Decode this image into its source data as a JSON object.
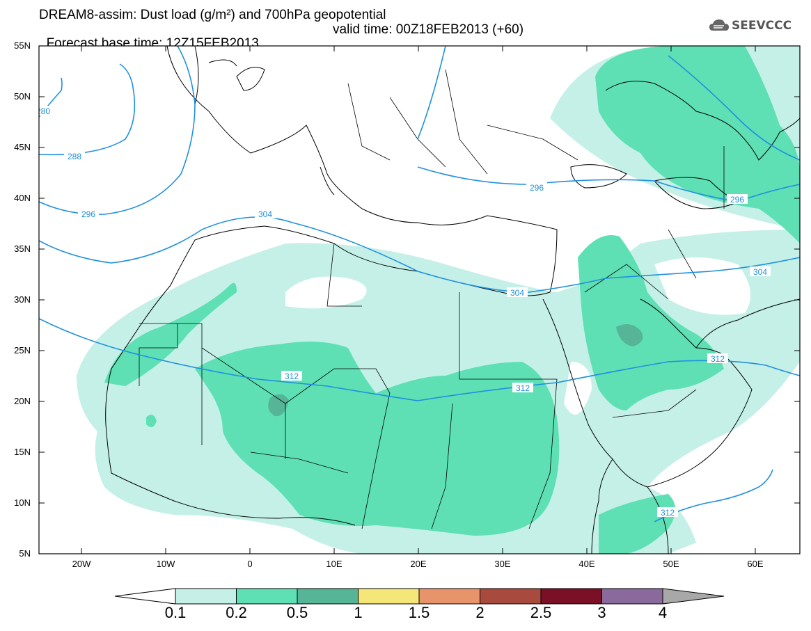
{
  "header": {
    "line1": "DREAM8-assim: Dust load (g/m²) and 700hPa geopotential",
    "line2_base": "Forecast base time: 12Z15FEB2013",
    "line2_valid": "valid time: 00Z18FEB2013 (+60)"
  },
  "logo": {
    "text": "SEEVCCC",
    "icon": "cloud-icon"
  },
  "map": {
    "lat_labels": [
      "55N",
      "50N",
      "45N",
      "40N",
      "35N",
      "30N",
      "25N",
      "20N",
      "15N",
      "10N",
      "5N"
    ],
    "lon_labels": [
      "20W",
      "10W",
      "0",
      "10E",
      "20E",
      "30E",
      "40E",
      "50E",
      "60E"
    ],
    "contour_labels": [
      "280",
      "288",
      "296",
      "304",
      "304",
      "296",
      "296",
      "304",
      "312",
      "312",
      "312",
      "312"
    ]
  },
  "colorbar": {
    "ticks": [
      "0.1",
      "0.2",
      "0.5",
      "1",
      "1.5",
      "2",
      "2.5",
      "3",
      "4"
    ],
    "colors": [
      "#ffffff",
      "#c4f0e8",
      "#5ee0b4",
      "#55b596",
      "#f5e67a",
      "#e8946a",
      "#a84a3e",
      "#7a0f26",
      "#8a6a9c",
      "#a8a8a8"
    ]
  },
  "colors": {
    "contour": "#1e90e0",
    "dust_low": "#c4f0e8",
    "dust_mid": "#5ee0b4",
    "dust_high": "#55b596"
  }
}
